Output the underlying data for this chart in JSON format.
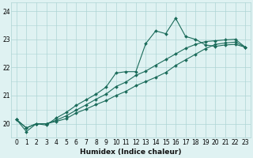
{
  "xlabel": "Humidex (Indice chaleur)",
  "background_color": "#dff2f2",
  "grid_color": "#aed4d4",
  "line_color": "#1a6b5a",
  "xlim": [
    -0.5,
    23.5
  ],
  "ylim": [
    19.5,
    24.3
  ],
  "yticks": [
    20,
    21,
    22,
    23,
    24
  ],
  "xticks": [
    0,
    1,
    2,
    3,
    4,
    5,
    6,
    7,
    8,
    9,
    10,
    11,
    12,
    13,
    14,
    15,
    16,
    17,
    18,
    19,
    20,
    21,
    22,
    23
  ],
  "series1_x": [
    0,
    1,
    2,
    3,
    4,
    5,
    6,
    7,
    8,
    9,
    10,
    11,
    12,
    13,
    14,
    15,
    16,
    17,
    18,
    19,
    20,
    21,
    22,
    23
  ],
  "series1_y": [
    20.15,
    19.72,
    20.0,
    19.95,
    20.2,
    20.4,
    20.65,
    20.85,
    21.05,
    21.3,
    21.8,
    21.85,
    21.85,
    22.85,
    23.3,
    23.2,
    23.75,
    23.1,
    23.0,
    22.8,
    22.75,
    22.8,
    22.82,
    22.72
  ],
  "series2_x": [
    0,
    1,
    2,
    3,
    4,
    5,
    6,
    7,
    8,
    9,
    10,
    11,
    12,
    13,
    14,
    15,
    16,
    17,
    18,
    19,
    20,
    21,
    22,
    23
  ],
  "series2_y": [
    20.15,
    19.85,
    20.0,
    20.0,
    20.12,
    20.28,
    20.48,
    20.67,
    20.87,
    21.05,
    21.32,
    21.48,
    21.72,
    21.87,
    22.08,
    22.28,
    22.48,
    22.68,
    22.82,
    22.92,
    22.95,
    22.98,
    23.0,
    22.72
  ],
  "series3_x": [
    0,
    1,
    2,
    3,
    4,
    5,
    6,
    7,
    8,
    9,
    10,
    11,
    12,
    13,
    14,
    15,
    16,
    17,
    18,
    19,
    20,
    21,
    22,
    23
  ],
  "series3_y": [
    20.15,
    19.85,
    20.0,
    20.0,
    20.08,
    20.18,
    20.38,
    20.52,
    20.68,
    20.82,
    21.0,
    21.15,
    21.35,
    21.5,
    21.65,
    21.82,
    22.07,
    22.27,
    22.47,
    22.67,
    22.82,
    22.87,
    22.9,
    22.72
  ],
  "marker": "D",
  "markersize": 2.0,
  "linewidth": 0.8,
  "tick_fontsize": 5.5,
  "xlabel_fontsize": 6.5
}
